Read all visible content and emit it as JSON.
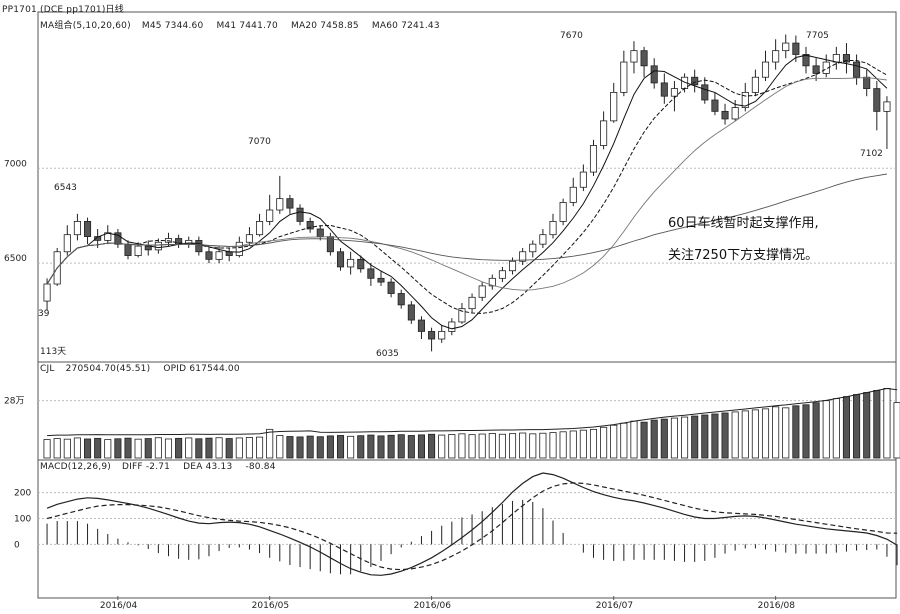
{
  "title_bar": "PP1701 (DCE pp1701)日线",
  "headers": {
    "ma": {
      "label": "MA组合(5,10,20,60)",
      "items": [
        "M45 7344.60",
        "M41 7441.70",
        "MA20 7458.85",
        "MA60 7241.43"
      ]
    },
    "vol": {
      "label": "CJL",
      "items": [
        "270504.70(45.51)",
        "OPID 617544.00"
      ]
    },
    "macd": {
      "label": "MACD(12,26,9)",
      "items": [
        "DIFF -2.71",
        "DEA 43.13",
        "-80.84"
      ]
    }
  },
  "note_lines": [
    "60日车线暂时起支撑作用,",
    "关注7250下方支撑情况。"
  ],
  "annotations": {
    "high_jul": "7670",
    "high_may": "7070",
    "high_aug": "7705",
    "low_jun": "6035",
    "low_aug": "7102",
    "left_high": "6543",
    "left_low": "39",
    "left_bottom": "113天"
  },
  "colors": {
    "bg": "#ffffff",
    "axis": "#555555",
    "grid": "#bdbdbd",
    "up": "#ffffff",
    "down": "#555555",
    "line": "#222222"
  },
  "chart_data": [
    {
      "type": "candlestick",
      "title": "",
      "ylim": [
        6000,
        7750
      ],
      "y_ticks": [
        6500,
        7000
      ],
      "grid": true,
      "candles": [
        [
          6300,
          6390,
          6250,
          6420
        ],
        [
          6390,
          6560,
          6380,
          6580
        ],
        [
          6560,
          6650,
          6540,
          6700
        ],
        [
          6650,
          6720,
          6620,
          6760
        ],
        [
          6720,
          6640,
          6600,
          6740
        ],
        [
          6640,
          6620,
          6580,
          6680
        ],
        [
          6620,
          6660,
          6600,
          6700
        ],
        [
          6660,
          6600,
          6580,
          6680
        ],
        [
          6600,
          6540,
          6520,
          6620
        ],
        [
          6540,
          6590,
          6530,
          6610
        ],
        [
          6590,
          6570,
          6540,
          6620
        ],
        [
          6570,
          6610,
          6550,
          6630
        ],
        [
          6610,
          6630,
          6590,
          6660
        ],
        [
          6630,
          6600,
          6580,
          6650
        ],
        [
          6600,
          6620,
          6580,
          6640
        ],
        [
          6620,
          6560,
          6540,
          6640
        ],
        [
          6560,
          6520,
          6500,
          6580
        ],
        [
          6520,
          6560,
          6500,
          6590
        ],
        [
          6560,
          6540,
          6510,
          6580
        ],
        [
          6540,
          6610,
          6530,
          6640
        ],
        [
          6610,
          6650,
          6590,
          6690
        ],
        [
          6650,
          6720,
          6640,
          6760
        ],
        [
          6720,
          6780,
          6700,
          6860
        ],
        [
          6780,
          6840,
          6760,
          6960
        ],
        [
          6840,
          6790,
          6760,
          6860
        ],
        [
          6790,
          6720,
          6700,
          6810
        ],
        [
          6720,
          6680,
          6660,
          6740
        ],
        [
          6680,
          6640,
          6620,
          6700
        ],
        [
          6640,
          6560,
          6540,
          6660
        ],
        [
          6560,
          6480,
          6460,
          6580
        ],
        [
          6480,
          6520,
          6440,
          6560
        ],
        [
          6520,
          6470,
          6450,
          6540
        ],
        [
          6470,
          6420,
          6380,
          6500
        ],
        [
          6420,
          6400,
          6380,
          6460
        ],
        [
          6400,
          6340,
          6320,
          6420
        ],
        [
          6340,
          6280,
          6260,
          6360
        ],
        [
          6280,
          6200,
          6180,
          6300
        ],
        [
          6200,
          6140,
          6100,
          6220
        ],
        [
          6140,
          6100,
          6035,
          6160
        ],
        [
          6100,
          6140,
          6080,
          6170
        ],
        [
          6140,
          6190,
          6120,
          6210
        ],
        [
          6190,
          6260,
          6180,
          6290
        ],
        [
          6260,
          6320,
          6240,
          6340
        ],
        [
          6320,
          6380,
          6300,
          6400
        ],
        [
          6380,
          6420,
          6360,
          6440
        ],
        [
          6420,
          6460,
          6400,
          6480
        ],
        [
          6460,
          6510,
          6440,
          6530
        ],
        [
          6510,
          6560,
          6490,
          6580
        ],
        [
          6560,
          6600,
          6530,
          6620
        ],
        [
          6600,
          6650,
          6580,
          6680
        ],
        [
          6650,
          6720,
          6630,
          6760
        ],
        [
          6720,
          6820,
          6700,
          6840
        ],
        [
          6820,
          6900,
          6800,
          6950
        ],
        [
          6900,
          6980,
          6880,
          7020
        ],
        [
          6980,
          7120,
          6960,
          7150
        ],
        [
          7120,
          7250,
          7100,
          7300
        ],
        [
          7250,
          7400,
          7240,
          7450
        ],
        [
          7400,
          7560,
          7380,
          7620
        ],
        [
          7560,
          7620,
          7500,
          7670
        ],
        [
          7620,
          7540,
          7480,
          7640
        ],
        [
          7540,
          7450,
          7420,
          7580
        ],
        [
          7450,
          7380,
          7340,
          7500
        ],
        [
          7380,
          7420,
          7300,
          7460
        ],
        [
          7420,
          7480,
          7400,
          7500
        ],
        [
          7480,
          7440,
          7400,
          7520
        ],
        [
          7440,
          7360,
          7340,
          7480
        ],
        [
          7360,
          7300,
          7280,
          7400
        ],
        [
          7300,
          7260,
          7230,
          7340
        ],
        [
          7260,
          7320,
          7250,
          7360
        ],
        [
          7320,
          7400,
          7300,
          7450
        ],
        [
          7400,
          7480,
          7380,
          7520
        ],
        [
          7480,
          7560,
          7460,
          7620
        ],
        [
          7560,
          7620,
          7520,
          7680
        ],
        [
          7620,
          7660,
          7580,
          7705
        ],
        [
          7660,
          7600,
          7560,
          7700
        ],
        [
          7600,
          7540,
          7500,
          7640
        ],
        [
          7540,
          7500,
          7460,
          7580
        ],
        [
          7500,
          7560,
          7480,
          7600
        ],
        [
          7560,
          7600,
          7520,
          7640
        ],
        [
          7600,
          7560,
          7500,
          7660
        ],
        [
          7560,
          7480,
          7440,
          7600
        ],
        [
          7480,
          7420,
          7380,
          7520
        ],
        [
          7420,
          7300,
          7200,
          7460
        ],
        [
          7300,
          7350,
          7102,
          7380
        ]
      ]
    },
    {
      "type": "bar",
      "title": "",
      "ylim": [
        0,
        420000
      ],
      "y_ticks": [
        280000
      ],
      "y_tick_labels": [
        "28万"
      ],
      "values": [
        90000,
        95000,
        92000,
        98000,
        93000,
        96000,
        90000,
        94000,
        97000,
        92000,
        95000,
        99000,
        93000,
        96000,
        98000,
        94000,
        97000,
        99000,
        95000,
        98000,
        100000,
        102000,
        140000,
        110000,
        105000,
        103000,
        107000,
        104000,
        108000,
        110000,
        106000,
        109000,
        112000,
        108000,
        111000,
        114000,
        110000,
        113000,
        116000,
        112000,
        115000,
        118000,
        114000,
        117000,
        120000,
        116000,
        119000,
        122000,
        118000,
        121000,
        124000,
        128000,
        132000,
        136000,
        140000,
        150000,
        160000,
        170000,
        180000,
        175000,
        185000,
        190000,
        195000,
        200000,
        205000,
        210000,
        215000,
        220000,
        225000,
        230000,
        235000,
        240000,
        250000,
        245000,
        255000,
        260000,
        270000,
        280000,
        290000,
        300000,
        310000,
        320000,
        330000,
        340000,
        270505
      ]
    },
    {
      "type": "line",
      "title": "",
      "ylim": [
        -200,
        280
      ],
      "y_ticks": [
        0,
        100,
        200
      ],
      "x_ticks": [
        "2016/04",
        "2016/05",
        "2016/06",
        "2016/07",
        "2016/08"
      ],
      "series": [
        {
          "name": "DIFF",
          "values": [
            140,
            155,
            165,
            175,
            180,
            178,
            172,
            165,
            158,
            150,
            140,
            128,
            115,
            102,
            90,
            82,
            80,
            84,
            86,
            84,
            78,
            68,
            54,
            40,
            24,
            8,
            -10,
            -30,
            -52,
            -74,
            -94,
            -108,
            -118,
            -120,
            -115,
            -104,
            -90,
            -72,
            -52,
            -28,
            -2,
            26,
            56,
            88,
            124,
            162,
            202,
            236,
            262,
            276,
            270,
            256,
            238,
            220,
            204,
            192,
            182,
            174,
            168,
            160,
            150,
            140,
            128,
            116,
            106,
            100,
            100,
            104,
            108,
            110,
            108,
            102,
            94,
            86,
            78,
            72,
            66,
            60,
            56,
            52,
            48,
            44,
            34,
            20,
            -3
          ]
        },
        {
          "name": "DEA",
          "values": [
            100,
            110,
            120,
            130,
            140,
            148,
            152,
            154,
            154,
            152,
            149,
            145,
            138,
            130,
            120,
            111,
            103,
            97,
            93,
            90,
            88,
            85,
            80,
            73,
            64,
            52,
            38,
            22,
            4,
            -16,
            -36,
            -56,
            -74,
            -88,
            -96,
            -98,
            -95,
            -88,
            -78,
            -64,
            -46,
            -26,
            -2,
            24,
            52,
            84,
            118,
            150,
            180,
            206,
            224,
            234,
            238,
            236,
            230,
            222,
            214,
            206,
            198,
            190,
            180,
            170,
            160,
            150,
            140,
            132,
            126,
            122,
            120,
            118,
            116,
            112,
            108,
            102,
            96,
            90,
            84,
            78,
            72,
            66,
            60,
            55,
            50,
            44,
            43
          ]
        },
        {
          "name": "MACD",
          "values": [
            80,
            90,
            90,
            90,
            80,
            60,
            40,
            22,
            8,
            -4,
            -18,
            -34,
            -46,
            -56,
            -60,
            -58,
            -46,
            -26,
            -14,
            -12,
            -20,
            -34,
            -52,
            -66,
            -80,
            -88,
            -96,
            -104,
            -112,
            -116,
            -116,
            -104,
            -88,
            -64,
            -38,
            -12,
            10,
            32,
            52,
            72,
            88,
            104,
            116,
            128,
            144,
            156,
            168,
            172,
            164,
            140,
            92,
            44,
            0,
            -32,
            -52,
            -60,
            -64,
            -64,
            -60,
            -60,
            -60,
            -60,
            -64,
            -68,
            -68,
            -64,
            -52,
            -36,
            -24,
            -16,
            -16,
            -20,
            -28,
            -32,
            -36,
            -36,
            -36,
            -36,
            -32,
            -28,
            -24,
            -22,
            -20,
            -48,
            -81
          ]
        }
      ]
    }
  ]
}
